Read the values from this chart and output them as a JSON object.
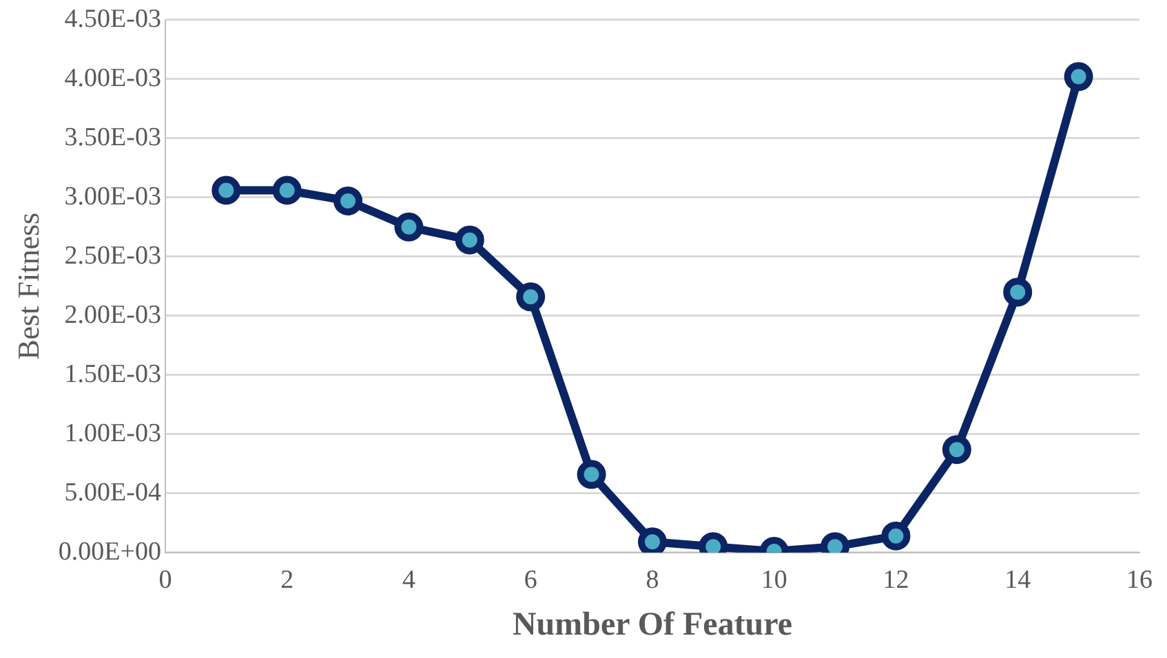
{
  "chart_data": {
    "type": "line",
    "xlabel": "Number Of Feature",
    "ylabel": "Best Fitness",
    "x": [
      1,
      2,
      3,
      4,
      5,
      6,
      7,
      8,
      9,
      10,
      11,
      12,
      13,
      14,
      15
    ],
    "series": [
      {
        "color": "#0b2463",
        "values": [
          0.00306,
          0.00306,
          0.00297,
          0.00275,
          0.00264,
          0.00216,
          0.00066,
          9e-05,
          5e-05,
          1e-05,
          5e-05,
          0.00014,
          0.00087,
          0.0022,
          0.00402
        ]
      }
    ],
    "xlim": [
      0,
      16
    ],
    "xticks": [
      0,
      2,
      4,
      6,
      8,
      10,
      12,
      14,
      16
    ],
    "ylim": [
      0,
      0.0045
    ],
    "yticks": [
      {
        "value": 0,
        "label": "0.00E+00"
      },
      {
        "value": 0.0005,
        "label": "5.00E-04"
      },
      {
        "value": 0.001,
        "label": "1.00E-03"
      },
      {
        "value": 0.0015,
        "label": "1.50E-03"
      },
      {
        "value": 0.002,
        "label": "2.00E-03"
      },
      {
        "value": 0.0025,
        "label": "2.50E-03"
      },
      {
        "value": 0.003,
        "label": "3.00E-03"
      },
      {
        "value": 0.0035,
        "label": "3.50E-03"
      },
      {
        "value": 0.004,
        "label": "4.00E-03"
      },
      {
        "value": 0.0045,
        "label": "4.50E-03"
      }
    ],
    "grid": "y",
    "legend": false,
    "marker": "circle",
    "line_style": "solid"
  }
}
